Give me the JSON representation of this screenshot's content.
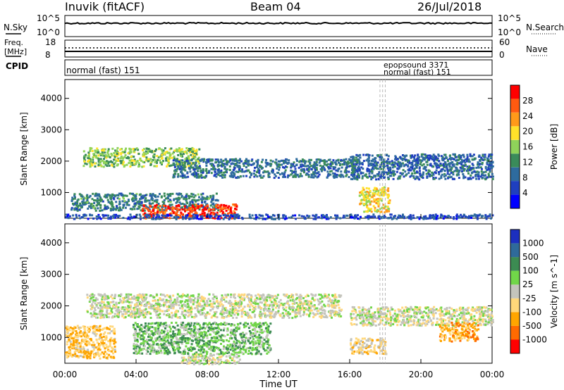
{
  "header": {
    "station": "Inuvik (fitACF)",
    "beam": "Beam 04",
    "date": "26/Jul/2018"
  },
  "summary": {
    "left_top_label": "N.Sky",
    "left_top_ticks": [
      "10^5",
      "10^0"
    ],
    "right_top_label": "N.Search",
    "right_top_ticks": [
      "10^5",
      "10^0"
    ],
    "freq_label_line1": "Freq.",
    "freq_label_line2": "[MHz]",
    "freq_ticks": [
      "18",
      "8"
    ],
    "nave_label": "Nave",
    "nave_ticks": [
      "60",
      "0"
    ],
    "cpid_label": "CPID",
    "cpid_text": "normal (fast) 151",
    "cpid_overlap_1": "epopsound 3371",
    "cpid_overlap_2": "normal (fast) 151"
  },
  "colors": {
    "power_scale": [
      "#0000ff",
      "#1f3fbf",
      "#2e6b9e",
      "#3a8b5a",
      "#8fd35a",
      "#ffe22a",
      "#ff9a1a",
      "#ff5a10",
      "#ff0000"
    ],
    "velocity_scale": [
      "#ff0000",
      "#ff6a00",
      "#ffa500",
      "#ffd77a",
      "#c4c4bc",
      "#71d649",
      "#3c8b52",
      "#2f6a9a",
      "#1c2fbf"
    ]
  },
  "chart_data": [
    {
      "type": "heatmap",
      "panel": "power",
      "ylabel": "Slant Range [km]",
      "xlabel": "",
      "yticks": [
        1000,
        2000,
        3000,
        4000
      ],
      "ylim": [
        180,
        4600
      ],
      "xticks": [
        "00:00",
        "04:00",
        "08:00",
        "12:00",
        "16:00",
        "20:00",
        "00:00"
      ],
      "xlim_hours": [
        0,
        24
      ],
      "colorbar": {
        "label": "Power [dB]",
        "ticks": [
          "28",
          "24",
          "20",
          "16",
          "12",
          "8",
          "4"
        ],
        "range": [
          0,
          30
        ]
      },
      "features": [
        {
          "t0": 0.3,
          "t1": 8.6,
          "r0": 450,
          "r1": 1000,
          "value": 10
        },
        {
          "t0": 4.3,
          "t1": 9.6,
          "r0": 200,
          "r1": 650,
          "value": 26
        },
        {
          "t0": 1.0,
          "t1": 7.5,
          "r0": 1850,
          "r1": 2450,
          "value": 15
        },
        {
          "t0": 6.0,
          "t1": 16.5,
          "r0": 1500,
          "r1": 2100,
          "value": 9
        },
        {
          "t0": 16.0,
          "t1": 24.0,
          "r0": 1450,
          "r1": 2250,
          "value": 8
        },
        {
          "t0": 0.0,
          "t1": 24.0,
          "r0": 180,
          "r1": 330,
          "value": 6
        },
        {
          "t0": 16.5,
          "t1": 18.2,
          "r0": 400,
          "r1": 1200,
          "value": 18
        }
      ]
    },
    {
      "type": "heatmap",
      "panel": "velocity",
      "ylabel": "Slant Range [km]",
      "xlabel": "Time UT",
      "yticks": [
        1000,
        2000,
        3000,
        4000
      ],
      "ylim": [
        180,
        4600
      ],
      "xticks": [
        "00:00",
        "04:00",
        "08:00",
        "12:00",
        "16:00",
        "20:00",
        "00:00"
      ],
      "xlim_hours": [
        0,
        24
      ],
      "colorbar": {
        "label": "Velocity [m s^-1]",
        "ticks": [
          "1000",
          "500",
          "100",
          "25",
          "-25",
          "-100",
          "-500",
          "-1000"
        ],
        "range": [
          -1000,
          1000
        ]
      },
      "features": [
        {
          "t0": 1.2,
          "t1": 15.5,
          "r0": 1650,
          "r1": 2400,
          "value": 0
        },
        {
          "t0": 16.0,
          "t1": 24.0,
          "r0": 1400,
          "r1": 2000,
          "value": 0
        },
        {
          "t0": 0.0,
          "t1": 2.8,
          "r0": 350,
          "r1": 1400,
          "value": -300
        },
        {
          "t0": 3.8,
          "t1": 11.5,
          "r0": 500,
          "r1": 1500,
          "value": 250
        },
        {
          "t0": 6.5,
          "t1": 9.8,
          "r0": 180,
          "r1": 500,
          "value": 0
        },
        {
          "t0": 16.0,
          "t1": 18.0,
          "r0": 500,
          "r1": 1000,
          "value": -200
        },
        {
          "t0": 21.0,
          "t1": 23.2,
          "r0": 900,
          "r1": 1500,
          "value": -400
        }
      ]
    }
  ]
}
